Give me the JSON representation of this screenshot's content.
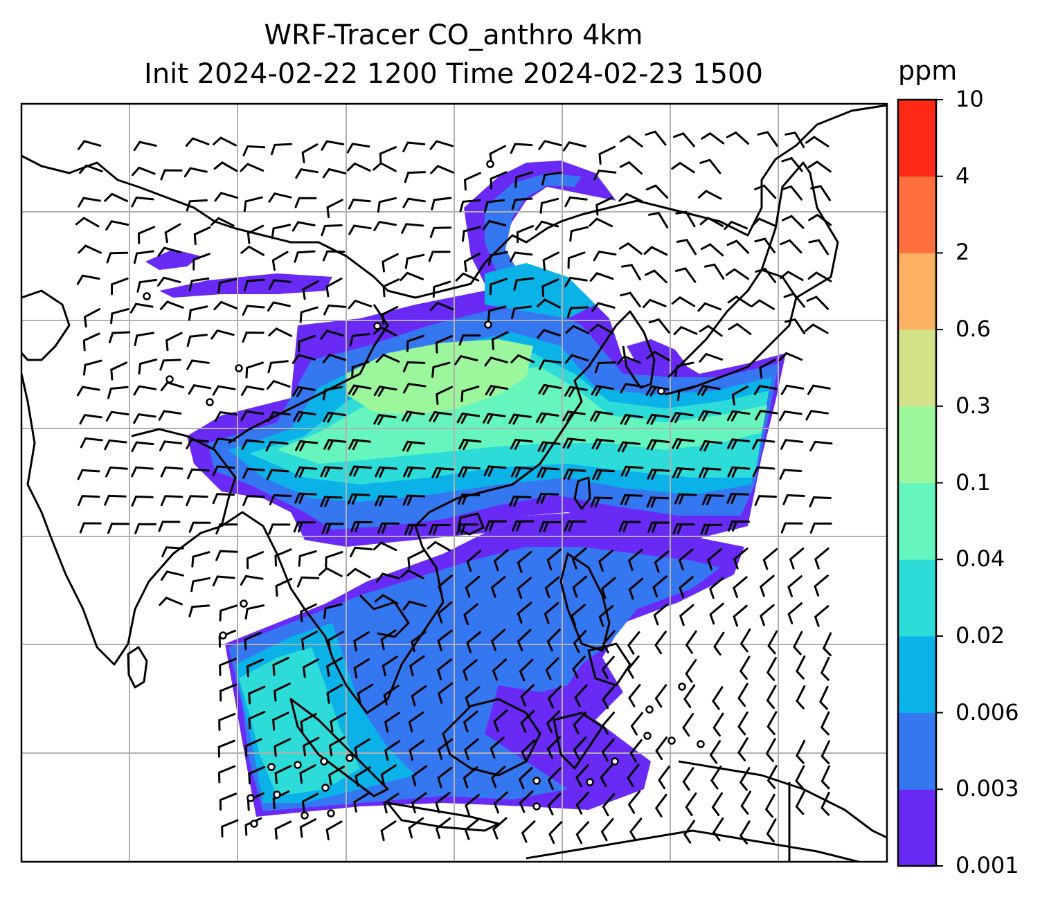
{
  "title": {
    "line1": "WRF-Tracer CO_anthro 4km",
    "line2": "Init 2024-02-22 1200 Time 2024-02-23 1500"
  },
  "colorbar": {
    "unit": "ppm",
    "levels": [
      "0.001",
      "0.003",
      "0.006",
      "0.02",
      "0.04",
      "0.1",
      "0.3",
      "0.6",
      "2",
      "4",
      "10"
    ],
    "colors": [
      "#6a2af6",
      "#3477f0",
      "#0ab2e8",
      "#2ddcd9",
      "#66f5bd",
      "#9cf79c",
      "#d1e289",
      "#fdb163",
      "#fd6f3d",
      "#fe2a16"
    ]
  },
  "map": {
    "type": "filled contour with wind barbs",
    "plume_colors": {
      "trace": "#6a2af6",
      "low": "#3477f0",
      "mid": "#0ab2e8",
      "moderate": "#2ddcd9",
      "high": "#66f5bd",
      "peak": "#9cf79c"
    },
    "gridlines": true,
    "coastline_color": "#000000"
  }
}
